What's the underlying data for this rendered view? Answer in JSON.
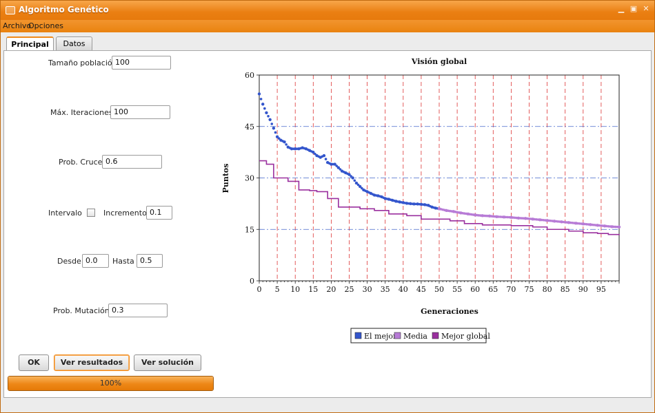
{
  "window": {
    "title": "Algoritmo Genético"
  },
  "menu": [
    "Archivo",
    "Opciones"
  ],
  "tabs": [
    {
      "label": "Principal",
      "active": true
    },
    {
      "label": "Datos",
      "active": false
    }
  ],
  "form": {
    "poblacion_label": "Tamaño población",
    "poblacion_value": "100",
    "iteraciones_label": "Máx. Iteraciones",
    "iteraciones_value": "100",
    "cruce_label": "Prob. Cruce",
    "cruce_value": "0.6",
    "intervalo_label": "Intervalo",
    "intervalo_checked": false,
    "incremento_label": "Incremento",
    "incremento_value": "0.1",
    "desde_label": "Desde",
    "desde_value": "0.0",
    "hasta_label": "Hasta",
    "hasta_value": "0.5",
    "mutacion_label": "Prob. Mutación",
    "mutacion_value": "0.3"
  },
  "buttons": {
    "ok": "OK",
    "ver_resultados": "Ver resultados",
    "ver_solucion": "Ver solución"
  },
  "progress": {
    "value": 1.0,
    "label": "100%"
  },
  "colors": {
    "accent": "#ee8716",
    "el_mejor": "#3355cc",
    "media": "#b77bd6",
    "mejor_global": "#9a2f9e"
  },
  "chart_data": {
    "type": "line",
    "title": "Visión global",
    "xlabel": "Generaciones",
    "ylabel": "Puntos",
    "xlim": [
      0,
      100
    ],
    "ylim": [
      0,
      60
    ],
    "xticks": [
      0,
      5,
      10,
      15,
      20,
      25,
      30,
      35,
      40,
      45,
      50,
      55,
      60,
      65,
      70,
      75,
      80,
      85,
      90,
      95
    ],
    "yticks": [
      0,
      15,
      30,
      45,
      60
    ],
    "grid": {
      "horizontal": "blue dash-dot",
      "vertical": "red dashed"
    },
    "legend_position": "bottom",
    "series": [
      {
        "name": "El mejor",
        "color": "#3355cc",
        "style": "dots",
        "x": [
          0,
          1,
          2,
          3,
          4,
          5,
          6,
          7,
          8,
          9,
          10,
          11,
          12,
          13,
          14,
          15,
          16,
          17,
          18,
          19,
          20,
          21,
          22,
          23,
          24,
          25,
          26,
          27,
          28,
          29,
          30,
          31,
          32,
          33,
          34,
          35,
          36,
          37,
          38,
          39,
          40,
          41,
          42,
          43,
          44,
          45,
          46,
          47,
          48,
          49,
          50
        ],
        "y": [
          54.5,
          51.5,
          49,
          47,
          44.5,
          42,
          41,
          40.5,
          39,
          38.5,
          38.5,
          38.5,
          38.8,
          38.5,
          38,
          37.5,
          36.5,
          36,
          36.5,
          34.5,
          34,
          34,
          33,
          32,
          31.5,
          31,
          30,
          28.5,
          27.5,
          26.5,
          26,
          25.5,
          25,
          24.8,
          24.5,
          24,
          23.8,
          23.5,
          23.2,
          23,
          22.8,
          22.6,
          22.5,
          22.4,
          22.4,
          22.3,
          22.2,
          22,
          21.5,
          21.2,
          21
        ]
      },
      {
        "name": "Media",
        "color": "#b77bd6",
        "style": "dots",
        "x": [
          50,
          52,
          54,
          56,
          58,
          60,
          62,
          64,
          66,
          68,
          70,
          72,
          74,
          76,
          78,
          80,
          82,
          84,
          86,
          88,
          90,
          92,
          94,
          96,
          98,
          100
        ],
        "y": [
          21,
          20.5,
          20.2,
          19.8,
          19.5,
          19.2,
          19,
          18.9,
          18.7,
          18.6,
          18.5,
          18.3,
          18.2,
          18,
          17.8,
          17.6,
          17.4,
          17.2,
          17,
          16.8,
          16.6,
          16.4,
          16.2,
          16,
          15.8,
          15.7
        ]
      },
      {
        "name": "Mejor global",
        "color": "#9a2f9e",
        "style": "step",
        "x": [
          0,
          2,
          4,
          8,
          11,
          14,
          16,
          19,
          22,
          28,
          32,
          36,
          41,
          45,
          53,
          57,
          62,
          70,
          76,
          80,
          86,
          90,
          94,
          97,
          100
        ],
        "y": [
          35,
          34,
          30,
          29,
          26.5,
          26.3,
          26,
          24,
          21.5,
          21,
          20.5,
          19.5,
          19,
          18,
          17.5,
          16.7,
          16.3,
          16.1,
          15.7,
          15,
          14.5,
          14,
          13.8,
          13.5,
          13.3
        ]
      }
    ]
  }
}
